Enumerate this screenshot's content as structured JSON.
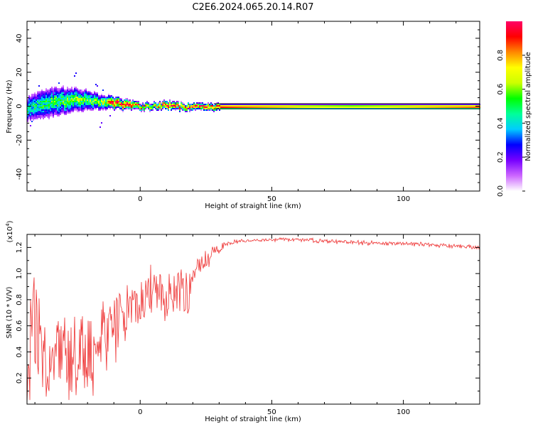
{
  "title": "C2E6.2024.065.20.14.R07",
  "colors": {
    "snr_line": "#ee3333",
    "axis": "#000000"
  },
  "colorbar": {
    "label": "Normalized spectral amplitude",
    "ticks": [
      "0.0",
      "0.2",
      "0.4",
      "0.6",
      "0.8"
    ],
    "tick_values": [
      0.0,
      0.2,
      0.4,
      0.6,
      0.8
    ],
    "range": [
      0,
      1
    ],
    "colormap": [
      "#ffffff",
      "#cc66ff",
      "#7700ff",
      "#0000ff",
      "#00ccff",
      "#00ff99",
      "#00ff00",
      "#ccff00",
      "#ffff00",
      "#ff8800",
      "#ff0000",
      "#ff0066"
    ]
  },
  "chart_data": [
    {
      "type": "heatmap",
      "xlabel": "Height of straight line (km)",
      "ylabel": "Frequency (Hz)",
      "xlim": [
        -43,
        129
      ],
      "ylim": [
        -50,
        50
      ],
      "x_ticks": [
        0,
        50,
        100
      ],
      "y_ticks": [
        -40,
        -20,
        0,
        20,
        40
      ],
      "x_tick_labels": [
        "0",
        "50",
        "100"
      ],
      "y_tick_labels": [
        "-40",
        "-20",
        "0",
        "20",
        "40"
      ],
      "ridge": {
        "x": [
          -43,
          -38,
          -32,
          -26,
          -20,
          -15,
          -10,
          -5,
          0,
          5,
          10,
          15,
          20,
          25,
          30,
          40,
          60,
          80,
          100,
          129
        ],
        "center_freq": [
          -1,
          1,
          3,
          4,
          4,
          3,
          2,
          1,
          0,
          0.5,
          1,
          0,
          0,
          0,
          0,
          0,
          0,
          0,
          0,
          0
        ],
        "half_width": [
          5,
          6,
          6,
          5,
          4,
          3,
          2.5,
          2,
          1.5,
          1.5,
          1.8,
          1.5,
          1.5,
          1.5,
          1.5,
          1.5,
          1.5,
          1.5,
          1.5,
          1.5
        ],
        "amplitude": [
          0.45,
          0.45,
          0.5,
          0.55,
          0.55,
          0.6,
          0.85,
          0.95,
          0.7,
          0.65,
          0.9,
          0.85,
          0.8,
          0.95,
          0.9,
          0.85,
          0.75,
          0.7,
          0.75,
          0.85
        ]
      }
    },
    {
      "type": "line",
      "xlabel": "Height of straight line (km)",
      "ylabel": "SNR (10 * V/V)",
      "yscale_label": "(x10",
      "yscale_exp": "4",
      "yscale_close": ")",
      "xlim": [
        -43,
        129
      ],
      "ylim": [
        0,
        1.3
      ],
      "x_ticks": [
        0,
        50,
        100
      ],
      "y_ticks": [
        0.2,
        0.4,
        0.6,
        0.8,
        1.0,
        1.2
      ],
      "x_tick_labels": [
        "0",
        "50",
        "100"
      ],
      "y_tick_labels": [
        "0.2",
        "0.4",
        "0.6",
        "0.8",
        "1.0",
        "1.2"
      ],
      "series": [
        {
          "envelope_x": [
            -43,
            -40,
            -35,
            -30,
            -25,
            -20,
            -15,
            -10,
            -5,
            0,
            5,
            10,
            15,
            18,
            20,
            25,
            30,
            35,
            40,
            50,
            60,
            70,
            80,
            90,
            100,
            110,
            120,
            129
          ],
          "envelope_mean": [
            0.25,
            0.5,
            0.4,
            0.35,
            0.3,
            0.35,
            0.45,
            0.6,
            0.75,
            0.8,
            0.85,
            0.85,
            0.9,
            0.8,
            1.0,
            1.1,
            1.2,
            1.24,
            1.25,
            1.26,
            1.26,
            1.25,
            1.24,
            1.23,
            1.23,
            1.22,
            1.21,
            1.2
          ],
          "envelope_noise": [
            0.35,
            0.35,
            0.3,
            0.28,
            0.25,
            0.25,
            0.22,
            0.2,
            0.18,
            0.16,
            0.15,
            0.15,
            0.15,
            0.15,
            0.08,
            0.05,
            0.03,
            0.015,
            0.01,
            0.01,
            0.01,
            0.012,
            0.012,
            0.012,
            0.012,
            0.012,
            0.012,
            0.012
          ]
        }
      ]
    }
  ]
}
